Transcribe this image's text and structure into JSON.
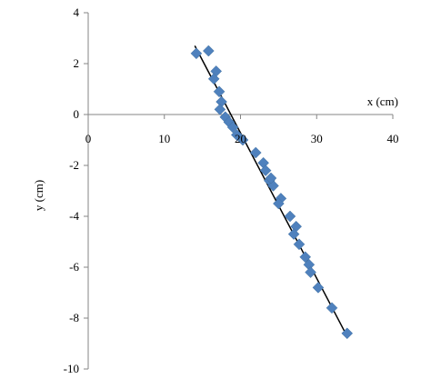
{
  "chart_data": {
    "type": "scatter",
    "xlabel": "x (cm)",
    "ylabel": "y (cm)",
    "xlim": [
      0,
      40
    ],
    "ylim": [
      -10,
      4
    ],
    "x_ticks": [
      0,
      10,
      20,
      30,
      40
    ],
    "y_ticks": [
      -10,
      -8,
      -6,
      -4,
      -2,
      0,
      2,
      4
    ],
    "x_tick_labels": [
      "0",
      "10",
      "20",
      "30",
      "40"
    ],
    "y_tick_labels": [
      "-10",
      "-8",
      "-6",
      "-4",
      "-2",
      "0",
      "2",
      "4"
    ],
    "grid": false,
    "legend": "none",
    "series": [
      {
        "marker": "diamond",
        "color": "#4f81bd",
        "points": [
          [
            14.2,
            2.4
          ],
          [
            15.8,
            2.5
          ],
          [
            16.8,
            1.7
          ],
          [
            16.5,
            1.4
          ],
          [
            17.2,
            0.9
          ],
          [
            17.5,
            0.5
          ],
          [
            17.3,
            0.2
          ],
          [
            18.0,
            -0.1
          ],
          [
            18.5,
            -0.3
          ],
          [
            19.0,
            -0.5
          ],
          [
            19.5,
            -0.8
          ],
          [
            20.3,
            -1.0
          ],
          [
            22.0,
            -1.5
          ],
          [
            23.0,
            -1.9
          ],
          [
            23.3,
            -2.2
          ],
          [
            23.8,
            -2.6
          ],
          [
            24.3,
            -2.8
          ],
          [
            24.0,
            -2.5
          ],
          [
            25.3,
            -3.3
          ],
          [
            25.0,
            -3.5
          ],
          [
            26.5,
            -4.0
          ],
          [
            27.3,
            -4.4
          ],
          [
            27.0,
            -4.7
          ],
          [
            27.7,
            -5.1
          ],
          [
            28.5,
            -5.6
          ],
          [
            29.0,
            -5.9
          ],
          [
            29.2,
            -6.2
          ],
          [
            30.2,
            -6.8
          ],
          [
            32.0,
            -7.6
          ],
          [
            34.0,
            -8.6
          ]
        ]
      }
    ],
    "trendline": {
      "color": "#000000",
      "x": [
        14.0,
        33.8
      ],
      "y": [
        2.7,
        -8.6
      ]
    }
  }
}
